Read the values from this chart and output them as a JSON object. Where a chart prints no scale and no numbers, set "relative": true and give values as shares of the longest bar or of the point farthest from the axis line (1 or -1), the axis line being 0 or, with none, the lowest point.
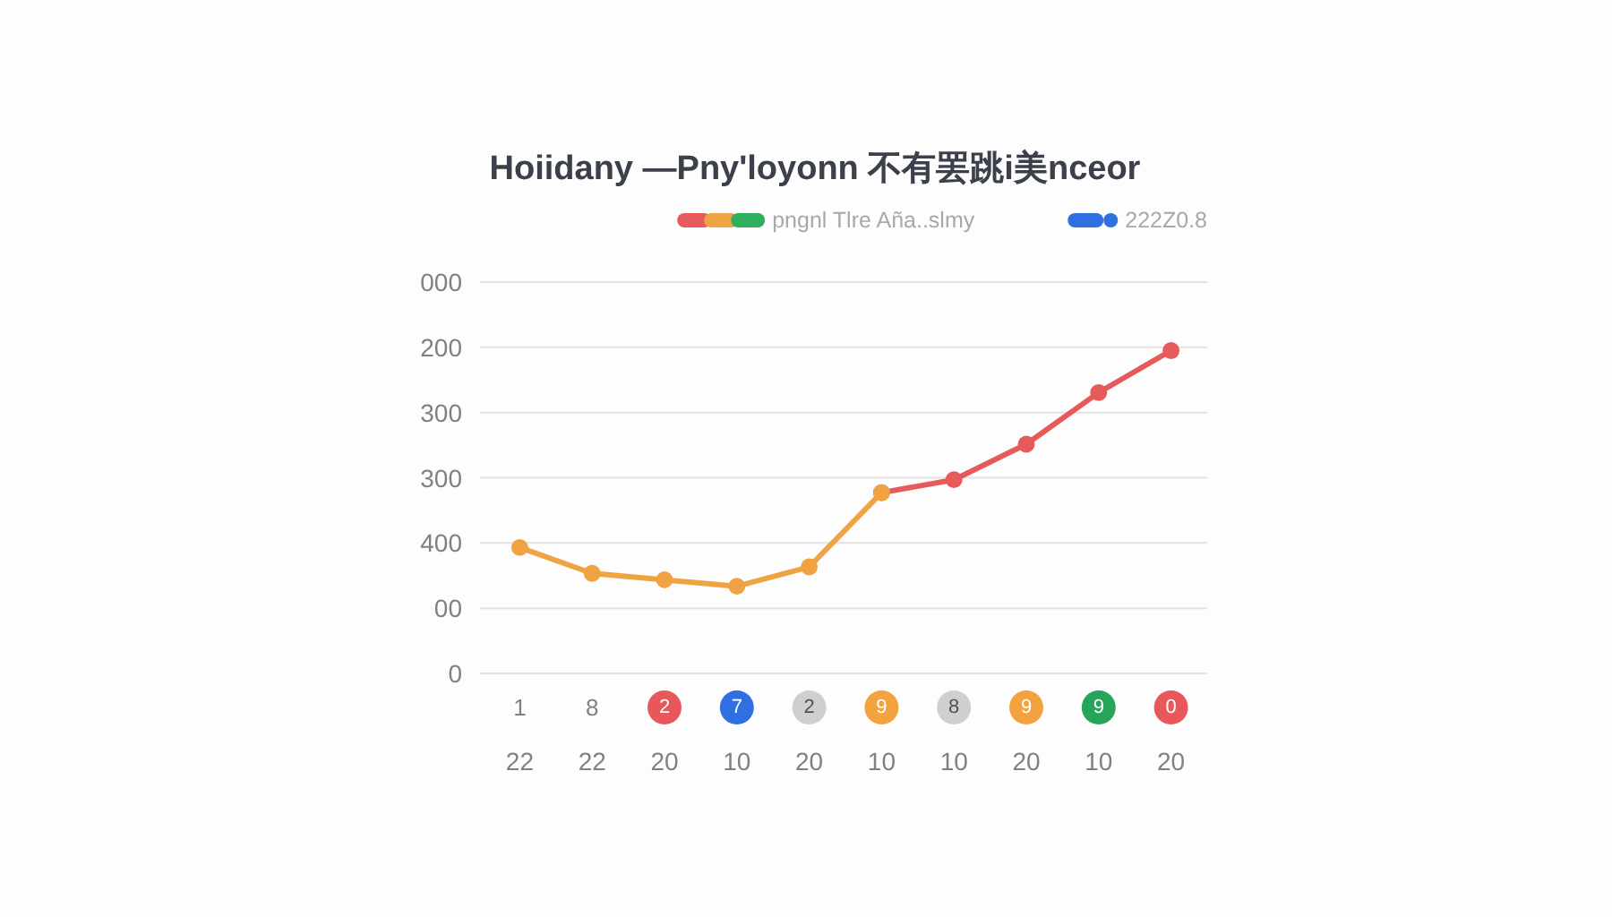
{
  "chart_data": {
    "type": "line",
    "title": "Hoiidany —Pny'loyonn 不有罢跳i美nceor",
    "categories": [
      "1\n22",
      "8\n22",
      "2\n20",
      "7\n10",
      "2\n20",
      "9\n10",
      "8\n10",
      "9\n20",
      "9\n10",
      "0\n20"
    ],
    "series": [
      {
        "name": "pngnl Tlre Aña..slmy",
        "color": "#f0a343",
        "values": [
          0.39,
          0.31,
          0.29,
          0.27,
          0.33,
          0.56,
          null,
          null,
          null,
          null
        ]
      },
      {
        "color": "#e65a5c",
        "values": [
          null,
          null,
          null,
          null,
          null,
          0.56,
          0.6,
          0.71,
          0.87,
          1
        ]
      },
      {
        "name": "222Z0.8",
        "color": "#2f6fe0",
        "values": [
          null,
          null,
          null,
          null,
          null,
          null,
          null,
          null,
          null,
          null
        ]
      }
    ],
    "relative": true,
    "annotations": [
      "000",
      "200",
      "300",
      "300",
      "400",
      "00",
      "0"
    ],
    "grid": "y",
    "legend": "top right",
    "marker": "circle",
    "line_style": "solid"
  }
}
